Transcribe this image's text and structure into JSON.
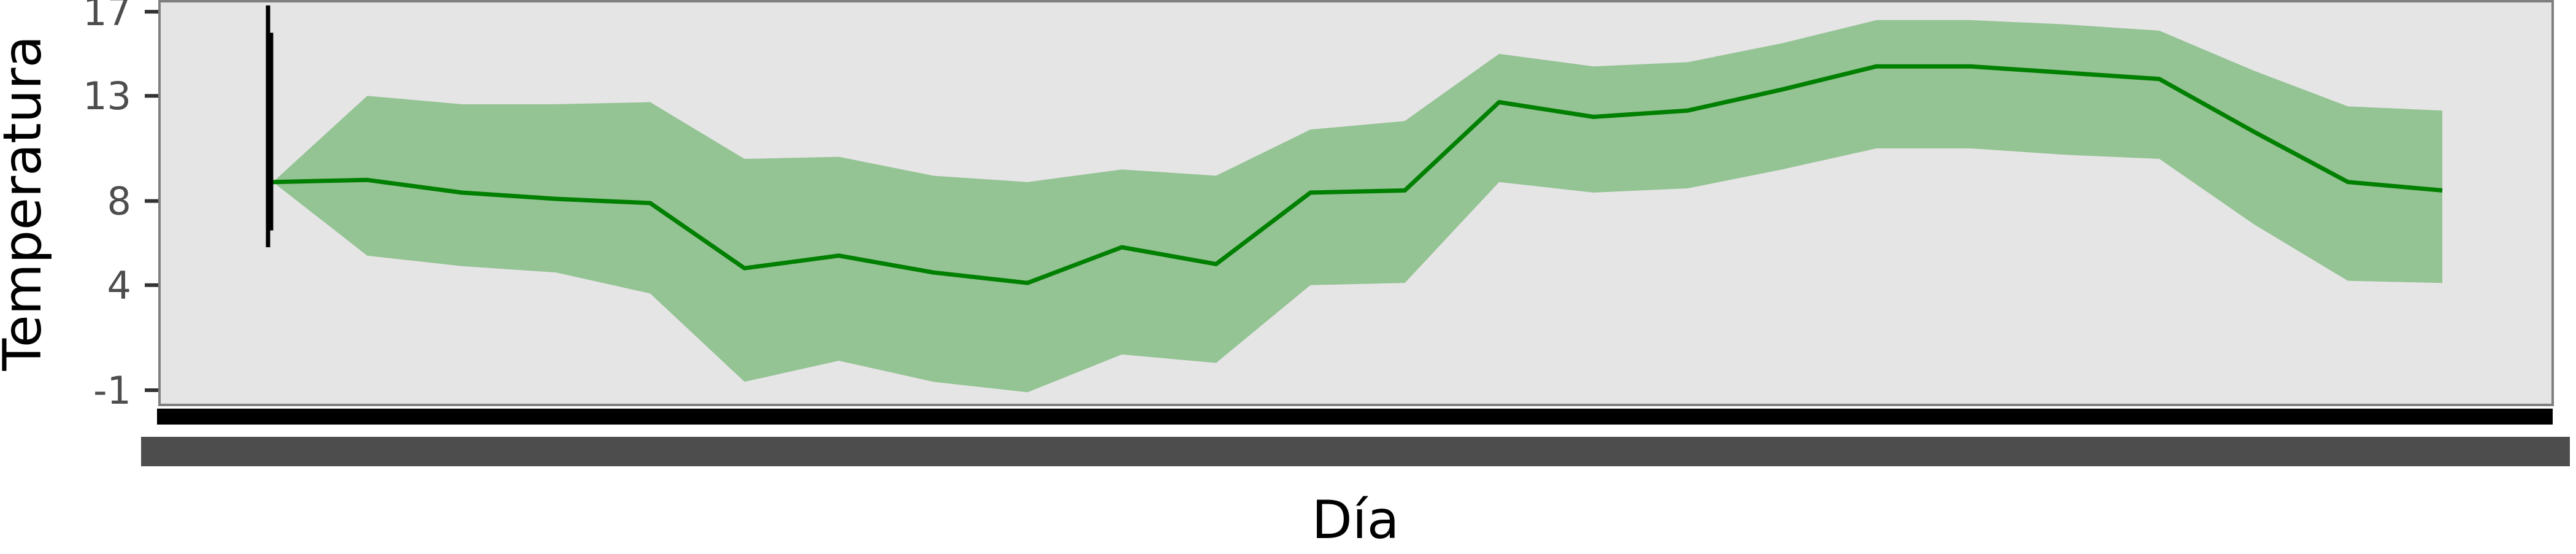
{
  "chart_data": {
    "type": "area",
    "xlabel": "Día",
    "ylabel": "Temperatura",
    "yticks": [
      -1,
      4,
      8,
      13,
      17
    ],
    "ylim": [
      -1.7,
      17.5
    ],
    "grid": false,
    "panel_background": "#e5e5e5",
    "line_color": "#008000",
    "band_color": "#94c394",
    "series": [
      {
        "type": "line",
        "values": [
          8.9,
          9.0,
          8.4,
          8.1,
          7.9,
          4.8,
          5.4,
          4.6,
          4.1,
          5.8,
          5.0,
          8.4,
          8.5,
          12.7,
          12.0,
          12.3,
          13.3,
          14.4,
          14.4,
          14.1,
          13.8,
          11.3,
          8.9,
          8.5
        ]
      },
      {
        "type": "band",
        "upper": [
          8.9,
          13.0,
          12.6,
          12.6,
          12.7,
          10.0,
          10.1,
          9.2,
          8.9,
          9.5,
          9.2,
          11.4,
          11.8,
          15.0,
          14.4,
          14.6,
          15.5,
          16.6,
          16.6,
          16.4,
          16.1,
          14.2,
          12.5,
          12.3
        ],
        "lower": [
          8.9,
          5.4,
          4.9,
          4.6,
          3.6,
          -0.6,
          0.4,
          -0.6,
          -1.1,
          0.7,
          0.3,
          4.0,
          4.1,
          8.9,
          8.4,
          8.6,
          9.5,
          10.5,
          10.5,
          10.2,
          10.0,
          6.9,
          4.2,
          4.1
        ]
      }
    ],
    "errorbars": [
      {
        "low": 5.8,
        "high": 17.3
      },
      {
        "low": 6.6,
        "high": 16.0
      },
      {
        "low": 7.8,
        "high": 11.8
      }
    ]
  }
}
